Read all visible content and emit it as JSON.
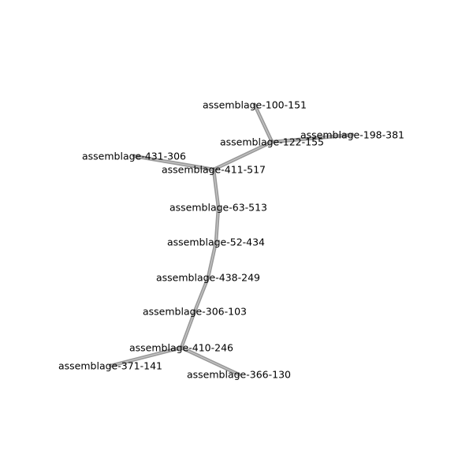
{
  "graph": {
    "edge_color": "#9a9a9a",
    "label_color": "#000000",
    "nodes": [
      {
        "id": "n100",
        "label": "assemblage-100-151"
      },
      {
        "id": "n198",
        "label": "assemblage-198-381"
      },
      {
        "id": "n122",
        "label": "assemblage-122-155"
      },
      {
        "id": "n431",
        "label": "assemblage-431-306"
      },
      {
        "id": "n411",
        "label": "assemblage-411-517"
      },
      {
        "id": "n63",
        "label": "assemblage-63-513"
      },
      {
        "id": "n52",
        "label": "assemblage-52-434"
      },
      {
        "id": "n438",
        "label": "assemblage-438-249"
      },
      {
        "id": "n306",
        "label": "assemblage-306-103"
      },
      {
        "id": "n410",
        "label": "assemblage-410-246"
      },
      {
        "id": "n371",
        "label": "assemblage-371-141"
      },
      {
        "id": "n366",
        "label": "assemblage-366-130"
      }
    ],
    "edges": [
      {
        "source": "n100",
        "target": "n122"
      },
      {
        "source": "n122",
        "target": "n198"
      },
      {
        "source": "n122",
        "target": "n411"
      },
      {
        "source": "n431",
        "target": "n411"
      },
      {
        "source": "n411",
        "target": "n63"
      },
      {
        "source": "n63",
        "target": "n52"
      },
      {
        "source": "n52",
        "target": "n438"
      },
      {
        "source": "n438",
        "target": "n306"
      },
      {
        "source": "n306",
        "target": "n410"
      },
      {
        "source": "n410",
        "target": "n371"
      },
      {
        "source": "n410",
        "target": "n366"
      }
    ]
  }
}
